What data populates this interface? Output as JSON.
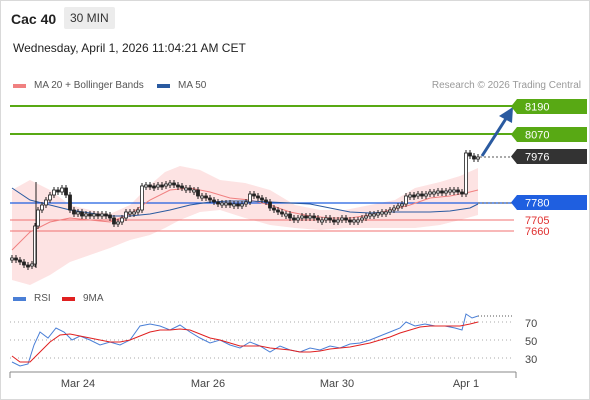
{
  "header": {
    "instrument": "Cac 40",
    "timeframe": "30 MIN"
  },
  "datetime": "Wednesday, April 1, 2026 11:04:21 AM CET",
  "legend": {
    "bollinger": {
      "label": "MA 20 + Bollinger Bands",
      "color": "#f08080"
    },
    "ma50": {
      "label": "MA 50",
      "color": "#2a5aa0"
    }
  },
  "credit": "Research © 2026 Trading Central",
  "price_levels": {
    "target2": "8190",
    "target1": "8070",
    "last": "7976",
    "pivot": "7780",
    "support1": "7705",
    "support2": "7660"
  },
  "rsi_legend": {
    "rsi": {
      "label": "RSI",
      "color": "#4a7fd6"
    },
    "ma9": {
      "label": "9MA",
      "color": "#e02020"
    }
  },
  "rsi_axis": [
    "70",
    "50",
    "30"
  ],
  "x_axis": [
    "Mar 24",
    "Mar 26",
    "Mar 30",
    "Apr 1"
  ],
  "colors": {
    "green": "#58a914",
    "blue": "#1f5fe0",
    "dark": "#333333",
    "red_line": "#f07070",
    "arrow": "#2a5aa0"
  }
}
